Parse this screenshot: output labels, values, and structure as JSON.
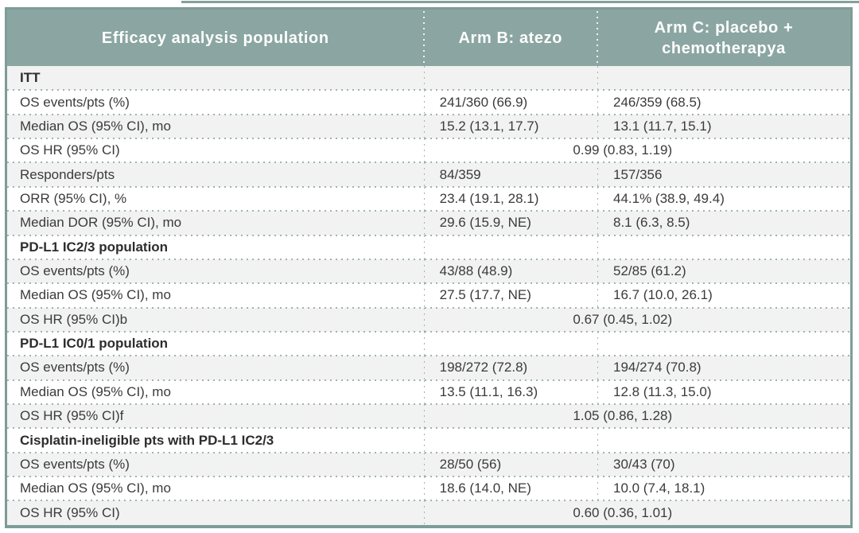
{
  "colors": {
    "header_bg": "#8ba6a2",
    "border": "#7e9c98",
    "dotted_line": "#9fb4b0",
    "alt_row_bg": "#f1f2f1",
    "body_text": "#3b3b3b",
    "header_text": "#fdfefd"
  },
  "chart_data": {
    "type": "table",
    "title": "Efficacy analysis population",
    "columns": [
      "Efficacy analysis population",
      "Arm B: atezo",
      "Arm C: placebo + chemotherapya"
    ],
    "rows": [
      {
        "type": "section",
        "label": "ITT",
        "armB": "",
        "armC": ""
      },
      {
        "type": "data",
        "label": "OS events/pts (%)",
        "armB": "241/360 (66.9)",
        "armC": "246/359 (68.5)"
      },
      {
        "type": "data",
        "label": "Median OS (95% CI), mo",
        "armB": "15.2 (13.1, 17.7)",
        "armC": "13.1 (11.7, 15.1)"
      },
      {
        "type": "span",
        "label": "OS HR (95% CI)",
        "value": "0.99 (0.83, 1.19)"
      },
      {
        "type": "data",
        "label": "Responders/pts",
        "armB": "84/359",
        "armC": "157/356"
      },
      {
        "type": "data",
        "label": "ORR (95% CI), %",
        "armB": "23.4 (19.1, 28.1)",
        "armC": "44.1% (38.9, 49.4)"
      },
      {
        "type": "data",
        "label": "Median DOR (95% CI), mo",
        "armB": "29.6 (15.9, NE)",
        "armC": "8.1 (6.3, 8.5)"
      },
      {
        "type": "section",
        "label": "PD-L1 IC2/3 population",
        "armB": "",
        "armC": ""
      },
      {
        "type": "data",
        "label": "OS events/pts (%)",
        "armB": "43/88 (48.9)",
        "armC": "52/85 (61.2)"
      },
      {
        "type": "data",
        "label": "Median OS (95% CI), mo",
        "armB": "27.5 (17.7, NE)",
        "armC": "16.7 (10.0, 26.1)"
      },
      {
        "type": "span",
        "label": "OS HR (95% CI)b",
        "value": "0.67 (0.45, 1.02)"
      },
      {
        "type": "section",
        "label": "PD-L1 IC0/1 population",
        "armB": "",
        "armC": ""
      },
      {
        "type": "data",
        "label": "OS events/pts (%)",
        "armB": "198/272 (72.8)",
        "armC": "194/274 (70.8)"
      },
      {
        "type": "data",
        "label": "Median OS (95% CI), mo",
        "armB": "13.5 (11.1, 16.3)",
        "armC": "12.8 (11.3, 15.0)"
      },
      {
        "type": "span",
        "label": "OS HR (95% CI)f",
        "value": "1.05 (0.86, 1.28)"
      },
      {
        "type": "section",
        "label": "Cisplatin-ineligible pts with PD-L1 IC2/3",
        "armB": "",
        "armC": ""
      },
      {
        "type": "data",
        "label": "OS events/pts (%)",
        "armB": "28/50 (56)",
        "armC": "30/43 (70)"
      },
      {
        "type": "data",
        "label": "Median OS (95% CI), mo",
        "armB": "18.6 (14.0, NE)",
        "armC": "10.0 (7.4, 18.1)"
      },
      {
        "type": "span",
        "label": "OS HR (95% CI)",
        "value": "0.60 (0.36, 1.01)"
      }
    ]
  }
}
